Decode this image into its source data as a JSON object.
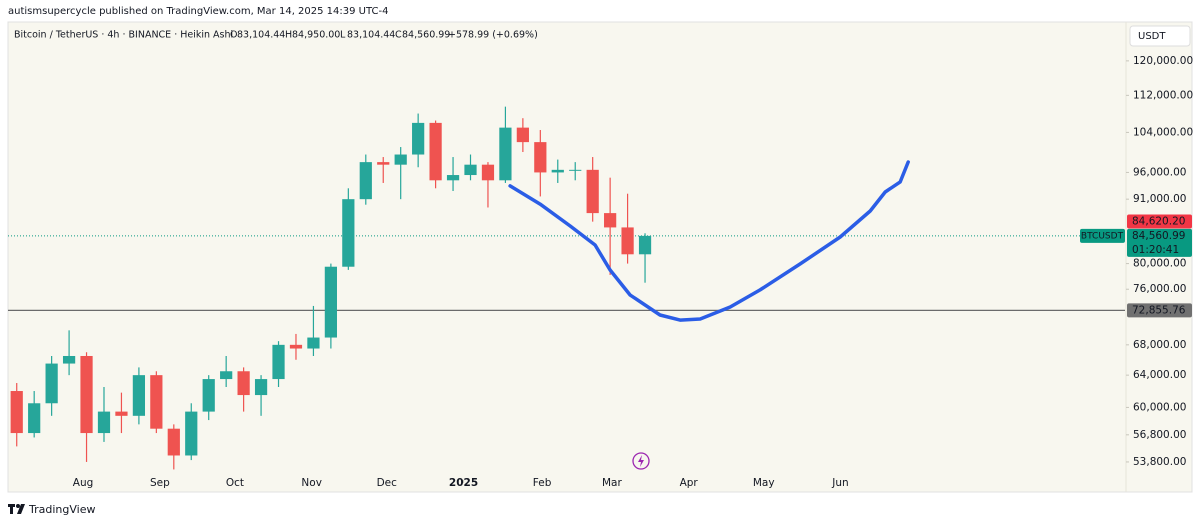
{
  "header": {
    "publisher": "autismsupercycle published on TradingView.com, Mar 14, 2025 14:39 UTC-4"
  },
  "currency_button": "USDT",
  "footer": {
    "brand": "TradingView"
  },
  "legend": {
    "symbol": "Bitcoin / TetherUS · 4h · BINANCE · Heikin Ashi",
    "ohlc": [
      {
        "key": "O",
        "value": "83,104.44"
      },
      {
        "key": "H",
        "value": "84,950.00"
      },
      {
        "key": "L",
        "value": "83,104.44"
      },
      {
        "key": "C",
        "value": "84,560.99"
      }
    ],
    "change": "+578.99 (+0.69%)"
  },
  "chart_data": {
    "type": "candlestick",
    "log_scale": true,
    "grid": false,
    "up_color": "#26a69a",
    "down_color": "#ef5350",
    "open": [
      62000,
      57000,
      60500,
      65500,
      66500,
      57000,
      59500,
      59000,
      64000,
      57500,
      54500,
      59500,
      63500,
      64500,
      61500,
      63500,
      68000,
      67500,
      69000,
      79500,
      91000,
      98000,
      97500,
      99500,
      106000,
      94500,
      95500,
      97500,
      94500,
      105000,
      102000,
      96000,
      96500,
      96500,
      88500,
      86000,
      81500
    ],
    "high": [
      63000,
      62000,
      66500,
      70000,
      67000,
      62500,
      61800,
      65000,
      64500,
      58000,
      60500,
      64000,
      66500,
      65000,
      64000,
      68500,
      69500,
      73500,
      80000,
      93000,
      99500,
      99000,
      101000,
      108000,
      106500,
      99000,
      99500,
      98000,
      109500,
      107000,
      104500,
      98500,
      98000,
      99000,
      95000,
      92000,
      85000
    ],
    "low": [
      55500,
      56500,
      59000,
      64000,
      53800,
      56000,
      57000,
      58000,
      57000,
      53000,
      54000,
      58500,
      62500,
      59500,
      59000,
      62500,
      66000,
      66500,
      67500,
      79000,
      90000,
      94000,
      91000,
      97000,
      93000,
      92500,
      94500,
      89500,
      94000,
      100000,
      91500,
      94000,
      94500,
      87000,
      78200,
      80000,
      77000
    ],
    "close": [
      57000,
      60500,
      65500,
      66500,
      57000,
      59500,
      59000,
      64000,
      57500,
      54500,
      59500,
      63500,
      64500,
      61500,
      63500,
      68000,
      67500,
      69000,
      79500,
      91000,
      98000,
      97500,
      99500,
      106000,
      94500,
      95500,
      97500,
      94500,
      105000,
      102000,
      96000,
      96500,
      96500,
      88500,
      86000,
      81500,
      84560.99
    ],
    "projection": {
      "color": "#2b5de6",
      "x": [
        28.77,
        30.49,
        32.21,
        33.64,
        34.5,
        35.64,
        37.36,
        38.51,
        39.66,
        41.38,
        43.09,
        45.39,
        47.68,
        49.4,
        50.26,
        51.12,
        51.58
      ],
      "values": [
        93450,
        90100,
        86250,
        83030,
        78980,
        75150,
        72180,
        71450,
        71600,
        73340,
        75900,
        79950,
        84370,
        88880,
        92320,
        94200,
        98030
      ]
    },
    "xlim": [
      0,
      64
    ],
    "xticks": [
      {
        "value": 4.3,
        "label": "Aug"
      },
      {
        "value": 8.7,
        "label": "Sep"
      },
      {
        "value": 13,
        "label": "Oct"
      },
      {
        "value": 17.4,
        "label": "Nov"
      },
      {
        "value": 21.7,
        "label": "Dec"
      },
      {
        "value": 26.1,
        "label": "2025"
      },
      {
        "value": 30.6,
        "label": "Feb"
      },
      {
        "value": 34.6,
        "label": "Mar"
      },
      {
        "value": 39,
        "label": "Apr"
      },
      {
        "value": 43.3,
        "label": "May"
      },
      {
        "value": 47.7,
        "label": "Jun"
      }
    ],
    "ylim": [
      52100,
      129700
    ],
    "yticks": [
      {
        "value": 120000,
        "label": "120,000.00"
      },
      {
        "value": 112000,
        "label": "112,000.00"
      },
      {
        "value": 104000,
        "label": "104,000.00"
      },
      {
        "value": 96000,
        "label": "96,000.00"
      },
      {
        "value": 91000,
        "label": "91,000.00"
      },
      {
        "value": 80000,
        "label": "80,000.00"
      },
      {
        "value": 76000,
        "label": "76,000.00"
      },
      {
        "value": 68000,
        "label": "68,000.00"
      },
      {
        "value": 64000,
        "label": "64,000.00"
      },
      {
        "value": 60000,
        "label": "60,000.00"
      },
      {
        "value": 56800,
        "label": "56,800.00"
      },
      {
        "value": 53800,
        "label": "53,800.00"
      }
    ],
    "horizontal_line": {
      "value": 72855.76,
      "label": "72,855.76"
    },
    "prev_price": {
      "value": 84620.2,
      "label": "84,620.20",
      "color": "#f23645"
    },
    "last_price": {
      "value": 84560.99,
      "label": "84,560.99",
      "symbol": "BTCUSDT",
      "countdown": "01:20:41",
      "color": "#089981"
    }
  }
}
